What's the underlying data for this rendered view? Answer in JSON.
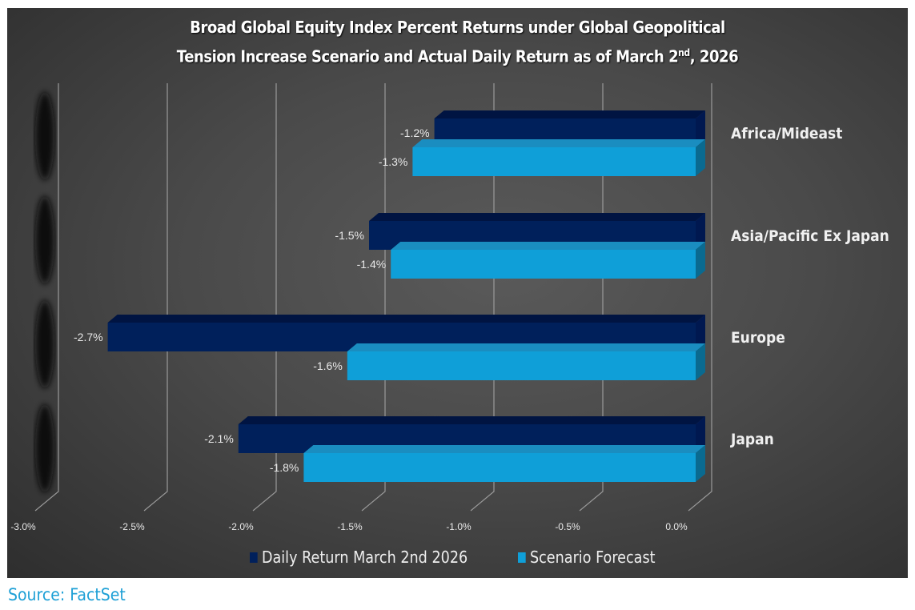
{
  "chart_data": {
    "type": "bar",
    "orientation": "horizontal",
    "style": "3d",
    "title_line1": "Broad Global Equity Index Percent Returns under Global Geopolitical",
    "title_line2_prefix": "Tension Increase Scenario and Actual Daily Return as of March 2",
    "title_line2_sup": "nd",
    "title_line2_suffix": ", 2026",
    "categories": [
      "Africa/Mideast",
      "Asia/Pacific Ex Japan",
      "Europe",
      "Japan"
    ],
    "series": [
      {
        "name": "Daily Return March 2nd 2026",
        "color": "#00205b",
        "values": [
          -1.2,
          -1.5,
          -2.7,
          -2.1
        ],
        "labels": [
          "-1.2%",
          "-1.5%",
          "-2.7%",
          "-2.1%"
        ]
      },
      {
        "name": "Scenario Forecast",
        "color": "#0f9fd8",
        "values": [
          -1.3,
          -1.4,
          -1.6,
          -1.8
        ],
        "labels": [
          "-1.3%",
          "-1.4%",
          "-1.6%",
          "-1.8%"
        ]
      }
    ],
    "xlim": [
      -3.0,
      0.0
    ],
    "xticks": [
      -3.0,
      -2.5,
      -2.0,
      -1.5,
      -1.0,
      -0.5,
      0.0
    ],
    "xtick_labels": [
      "-3.0%",
      "-2.5%",
      "-2.0%",
      "-1.5%",
      "-1.0%",
      "-0.5%",
      "0.0%"
    ],
    "grid": true,
    "legend_position": "bottom"
  },
  "source": "Source: FactSet"
}
